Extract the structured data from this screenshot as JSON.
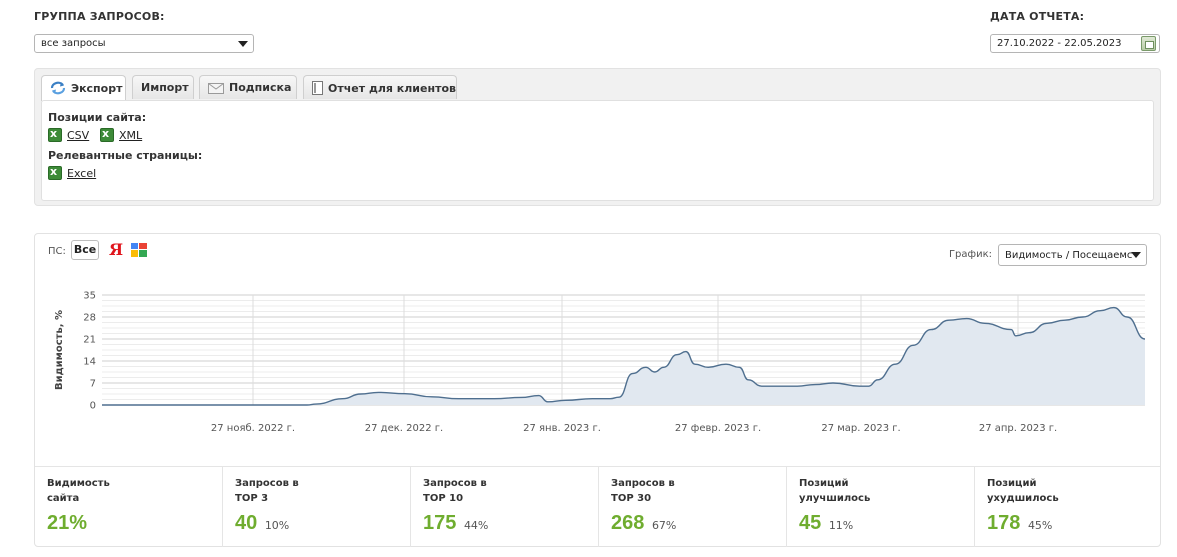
{
  "header": {
    "group_label": "ГРУППА ЗАПРОСОВ:",
    "group_value": "все запросы",
    "date_label": "ДАТА ОТЧЕТА:",
    "date_value": "27.10.2022 - 22.05.2023"
  },
  "tabs": [
    {
      "label": "Экспорт",
      "active": true
    },
    {
      "label": "Импорт"
    },
    {
      "label": "Подписка"
    },
    {
      "label": "Отчет для клиентов"
    }
  ],
  "export": {
    "positions_title": "Позиции сайта:",
    "csv_label": "CSV",
    "xml_label": "XML",
    "relevant_title": "Релевантные страницы:",
    "excel_label": "Excel"
  },
  "chart_panel": {
    "ps_label": "ПС:",
    "ps_all": "Все",
    "yandex_glyph": "Я",
    "graph_label": "График:",
    "graph_value": "Видимость / Посещаемс"
  },
  "chart_data": {
    "type": "area",
    "ylabel": "Видимость, %",
    "ylim": [
      0,
      35
    ],
    "yticks": [
      "0",
      "7",
      "14",
      "21",
      "28",
      "35"
    ],
    "xlabels": [
      "27 нояб. 2022 г.",
      "27 дек. 2022 г.",
      "27 янв. 2023 г.",
      "27 февр. 2023 г.",
      "27 мар. 2023 г.",
      "27 апр. 2023 г."
    ],
    "color": "#4f6f8f",
    "fill": "#e1e8f0",
    "points": [
      [
        0,
        0
      ],
      [
        0.23,
        0
      ],
      [
        0.24,
        0.3
      ],
      [
        0.27,
        2
      ],
      [
        0.29,
        3.5
      ],
      [
        0.31,
        4
      ],
      [
        0.34,
        3.6
      ],
      [
        0.37,
        2.6
      ],
      [
        0.4,
        2
      ],
      [
        0.44,
        2
      ],
      [
        0.47,
        2.4
      ],
      [
        0.49,
        3
      ],
      [
        0.5,
        1
      ],
      [
        0.52,
        1.5
      ],
      [
        0.55,
        2
      ],
      [
        0.57,
        2
      ],
      [
        0.58,
        2.5
      ],
      [
        0.595,
        10
      ],
      [
        0.61,
        12
      ],
      [
        0.62,
        10.5
      ],
      [
        0.63,
        12
      ],
      [
        0.645,
        16
      ],
      [
        0.655,
        17
      ],
      [
        0.665,
        13
      ],
      [
        0.68,
        12
      ],
      [
        0.7,
        13
      ],
      [
        0.715,
        12
      ],
      [
        0.725,
        8
      ],
      [
        0.74,
        6
      ],
      [
        0.78,
        6
      ],
      [
        0.8,
        6.5
      ],
      [
        0.82,
        7
      ],
      [
        0.85,
        6
      ],
      [
        0.86,
        6
      ],
      [
        0.87,
        8
      ],
      [
        0.89,
        13
      ],
      [
        0.91,
        19
      ],
      [
        0.93,
        24
      ],
      [
        0.95,
        27
      ],
      [
        0.97,
        27.5
      ],
      [
        0.99,
        26
      ],
      [
        1.02,
        24
      ],
      [
        1.025,
        22
      ],
      [
        1.04,
        23
      ],
      [
        1.06,
        26
      ],
      [
        1.08,
        27
      ],
      [
        1.1,
        28
      ],
      [
        1.12,
        30
      ],
      [
        1.135,
        31
      ],
      [
        1.15,
        28
      ],
      [
        1.17,
        21
      ]
    ]
  },
  "stats": [
    {
      "label": "Видимость\nсайта",
      "value": "21%",
      "pct": ""
    },
    {
      "label": "Запросов в\nTOP 3",
      "value": "40",
      "pct": "10%"
    },
    {
      "label": "Запросов в\nTOP 10",
      "value": "175",
      "pct": "44%"
    },
    {
      "label": "Запросов в\nTOP 30",
      "value": "268",
      "pct": "67%"
    },
    {
      "label": "Позиций\nулучшилось",
      "value": "45",
      "pct": "11%"
    },
    {
      "label": "Позиций\nухудшилось",
      "value": "178",
      "pct": "45%"
    }
  ]
}
